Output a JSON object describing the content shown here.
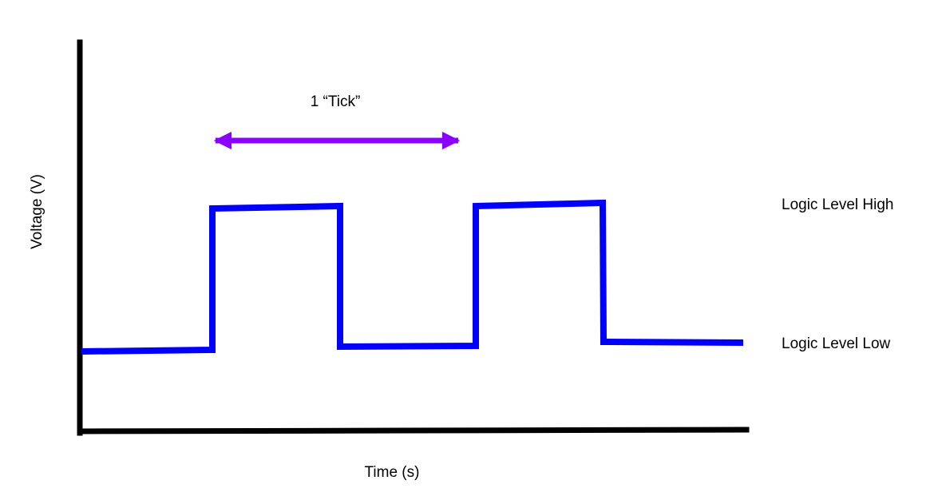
{
  "title": "",
  "axes": {
    "y_label": "Voltage (V)",
    "x_label": "Time (s)"
  },
  "signal": {
    "type": "square-wave",
    "color": "#0000ff",
    "levels": {
      "high": "Logic Level High",
      "low": "Logic Level Low"
    }
  },
  "period_marker": {
    "label": "1 “Tick”",
    "color": "#8b00ff"
  },
  "axis_color": "#000000"
}
